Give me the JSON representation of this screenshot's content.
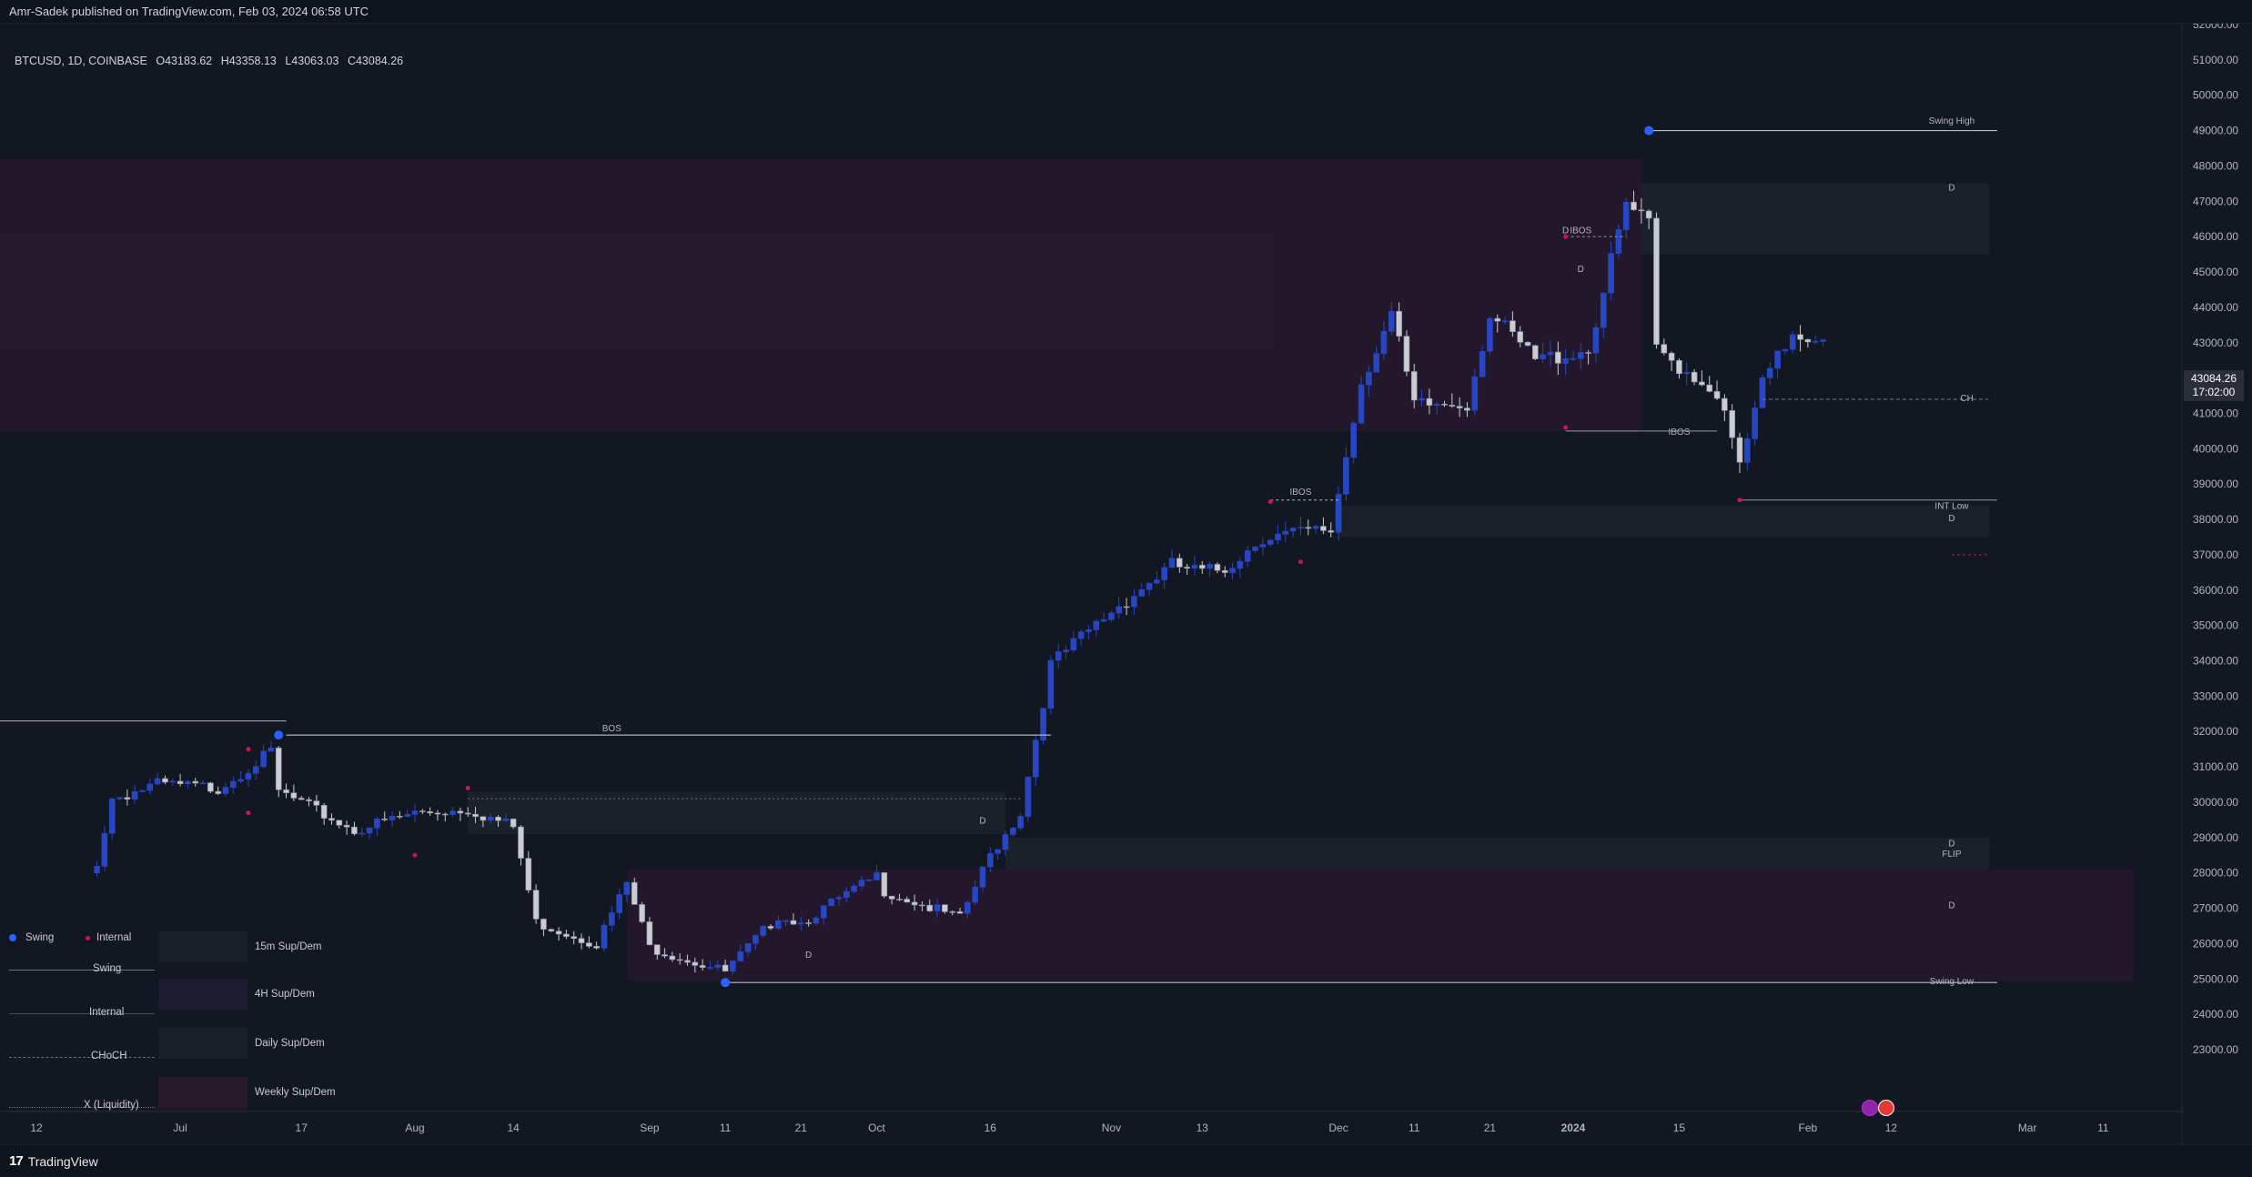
{
  "header": {
    "publisher_line": "Amr-Sadek published on TradingView.com, Feb 03, 2024 06:58 UTC"
  },
  "symbol": {
    "name": "BTCUSD, 1D, COINBASE",
    "open": "O43183.62",
    "high": "H43358.13",
    "low": "L43063.03",
    "close": "C43084.26"
  },
  "price_badge": {
    "price": "43084.26",
    "countdown": "17:02:00"
  },
  "colors": {
    "background": "#131722",
    "bull": "#2746c4",
    "bear": "#c9ccd3",
    "swing_marker": "#2962ff",
    "internal_marker": "#c2185b",
    "weekly_zone": "#2a1a2f",
    "daily_zone": "#1d222b"
  },
  "legend": {
    "swing_label": "Swing",
    "internal_label": "Internal",
    "line_swing": "Swing",
    "line_internal": "Internal",
    "line_choch": "CHoCH",
    "line_liquidity": "X (Liquidity)",
    "zone_15m": "15m Sup/Dem",
    "zone_4h": "4H Sup/Dem",
    "zone_daily": "Daily Sup/Dem",
    "zone_weekly": "Weekly Sup/Dem"
  },
  "footer": {
    "brand": "TradingView",
    "logo_text": "17"
  },
  "chart_data": {
    "type": "candlestick",
    "symbol": "BTCUSD",
    "timeframe": "1D",
    "y_axis": {
      "min": 22500,
      "max": 52000,
      "ticks": [
        "52000.00",
        "51000.00",
        "50000.00",
        "49000.00",
        "48000.00",
        "47000.00",
        "46000.00",
        "45000.00",
        "44000.00",
        "43000.00",
        "42000.00",
        "41000.00",
        "40000.00",
        "39000.00",
        "38000.00",
        "37000.00",
        "36000.00",
        "35000.00",
        "34000.00",
        "33000.00",
        "32000.00",
        "31000.00",
        "30000.00",
        "29000.00",
        "28000.00",
        "27000.00",
        "26000.00",
        "25000.00",
        "24000.00",
        "23000.00"
      ]
    },
    "x_axis": {
      "ticks": [
        {
          "label": "12",
          "date": "2023-06-12"
        },
        {
          "label": "Jul",
          "date": "2023-07-01"
        },
        {
          "label": "17",
          "date": "2023-07-17"
        },
        {
          "label": "Aug",
          "date": "2023-08-01"
        },
        {
          "label": "14",
          "date": "2023-08-14"
        },
        {
          "label": "Sep",
          "date": "2023-09-01"
        },
        {
          "label": "11",
          "date": "2023-09-11"
        },
        {
          "label": "21",
          "date": "2023-09-21"
        },
        {
          "label": "Oct",
          "date": "2023-10-01"
        },
        {
          "label": "16",
          "date": "2023-10-16"
        },
        {
          "label": "Nov",
          "date": "2023-11-01"
        },
        {
          "label": "13",
          "date": "2023-11-13"
        },
        {
          "label": "Dec",
          "date": "2023-12-01"
        },
        {
          "label": "11",
          "date": "2023-12-11"
        },
        {
          "label": "21",
          "date": "2023-12-21"
        },
        {
          "label": "2024",
          "date": "2024-01-01"
        },
        {
          "label": "15",
          "date": "2024-01-15"
        },
        {
          "label": "Feb",
          "date": "2024-02-01"
        },
        {
          "label": "12",
          "date": "2024-02-12"
        },
        {
          "label": "Mar",
          "date": "2024-03-01"
        },
        {
          "label": "11",
          "date": "2024-03-11"
        }
      ]
    },
    "close_path": [
      {
        "date": "2023-06-20",
        "close": 28300
      },
      {
        "date": "2023-06-22",
        "close": 30100
      },
      {
        "date": "2023-06-28",
        "close": 30500
      },
      {
        "date": "2023-07-06",
        "close": 30400
      },
      {
        "date": "2023-07-13",
        "close": 31400
      },
      {
        "date": "2023-07-14",
        "close": 30300
      },
      {
        "date": "2023-07-24",
        "close": 29200
      },
      {
        "date": "2023-08-01",
        "close": 29700
      },
      {
        "date": "2023-08-08",
        "close": 29800
      },
      {
        "date": "2023-08-14",
        "close": 29300
      },
      {
        "date": "2023-08-17",
        "close": 26600
      },
      {
        "date": "2023-08-25",
        "close": 26000
      },
      {
        "date": "2023-08-29",
        "close": 27700
      },
      {
        "date": "2023-09-01",
        "close": 25900
      },
      {
        "date": "2023-09-11",
        "close": 25200
      },
      {
        "date": "2023-09-18",
        "close": 26800
      },
      {
        "date": "2023-09-21",
        "close": 26600
      },
      {
        "date": "2023-10-01",
        "close": 27900
      },
      {
        "date": "2023-10-02",
        "close": 27500
      },
      {
        "date": "2023-10-12",
        "close": 26700
      },
      {
        "date": "2023-10-16",
        "close": 28500
      },
      {
        "date": "2023-10-20",
        "close": 29700
      },
      {
        "date": "2023-10-24",
        "close": 33900
      },
      {
        "date": "2023-11-01",
        "close": 35400
      },
      {
        "date": "2023-11-09",
        "close": 36700
      },
      {
        "date": "2023-11-13",
        "close": 36500
      },
      {
        "date": "2023-11-16",
        "close": 36600
      },
      {
        "date": "2023-11-21",
        "close": 37500
      },
      {
        "date": "2023-11-30",
        "close": 37700
      },
      {
        "date": "2023-12-04",
        "close": 41900
      },
      {
        "date": "2023-12-08",
        "close": 43800
      },
      {
        "date": "2023-12-11",
        "close": 41200
      },
      {
        "date": "2023-12-18",
        "close": 41300
      },
      {
        "date": "2023-12-21",
        "close": 43800
      },
      {
        "date": "2023-12-27",
        "close": 42500
      },
      {
        "date": "2024-01-03",
        "close": 42800
      },
      {
        "date": "2024-01-08",
        "close": 46900
      },
      {
        "date": "2024-01-11",
        "close": 46300
      },
      {
        "date": "2024-01-12",
        "close": 42800
      },
      {
        "date": "2024-01-20",
        "close": 41600
      },
      {
        "date": "2024-01-23",
        "close": 39500
      },
      {
        "date": "2024-01-26",
        "close": 41800
      },
      {
        "date": "2024-01-30",
        "close": 43300
      },
      {
        "date": "2024-02-03",
        "close": 43084.26
      }
    ],
    "key_levels": {
      "swing_high": 49000,
      "swing_low": 24900,
      "int_low": 38550,
      "bos": 31900,
      "ch": 41400
    },
    "zones": [
      {
        "type": "weekly",
        "from": "2023-06-07",
        "to": "2024-01-10",
        "top": 48200,
        "bottom": 40500
      },
      {
        "type": "daily",
        "from": "2024-01-10",
        "to": "2024-02-25",
        "top": 47500,
        "bottom": 45500
      },
      {
        "type": "daily",
        "from": "2023-12-01",
        "to": "2024-02-25",
        "top": 38400,
        "bottom": 37500
      },
      {
        "type": "daily",
        "from": "2023-10-18",
        "to": "2024-02-25",
        "top": 29000,
        "bottom": 28100
      },
      {
        "type": "weekly",
        "from": "2023-08-29",
        "to": "2024-03-15",
        "top": 28100,
        "bottom": 24950
      },
      {
        "type": "daily",
        "from": "2023-08-08",
        "to": "2023-10-18",
        "top": 30300,
        "bottom": 29100
      }
    ],
    "annotations": [
      {
        "text": "Swing High",
        "date": "2024-02-20",
        "price": 49200
      },
      {
        "text": "D",
        "date": "2024-02-20",
        "price": 47300
      },
      {
        "text": "IBOS",
        "date": "2024-01-02",
        "price": 46100
      },
      {
        "text": "D",
        "date": "2023-12-31",
        "price": 46100
      },
      {
        "text": "D",
        "date": "2024-01-02",
        "price": 45000
      },
      {
        "text": "IBOS",
        "date": "2024-01-15",
        "price": 40400
      },
      {
        "text": "CH",
        "date": "2024-02-22",
        "price": 41350
      },
      {
        "text": "IBOS",
        "date": "2023-11-26",
        "price": 38700
      },
      {
        "text": "INT Low",
        "date": "2024-02-20",
        "price": 38300
      },
      {
        "text": "D",
        "date": "2024-02-20",
        "price": 37950
      },
      {
        "text": "BOS",
        "date": "2023-08-27",
        "price": 32000
      },
      {
        "text": "D",
        "date": "2023-10-15",
        "price": 29400
      },
      {
        "text": "D",
        "date": "2024-02-20",
        "price": 28750
      },
      {
        "text": "FLIP",
        "date": "2024-02-20",
        "price": 28450
      },
      {
        "text": "D",
        "date": "2024-02-20",
        "price": 27000
      },
      {
        "text": "D",
        "date": "2023-09-22",
        "price": 25600
      },
      {
        "text": "Swing Low",
        "date": "2024-02-20",
        "price": 24850
      }
    ],
    "grid": false,
    "legend_position": "bottom-left"
  }
}
